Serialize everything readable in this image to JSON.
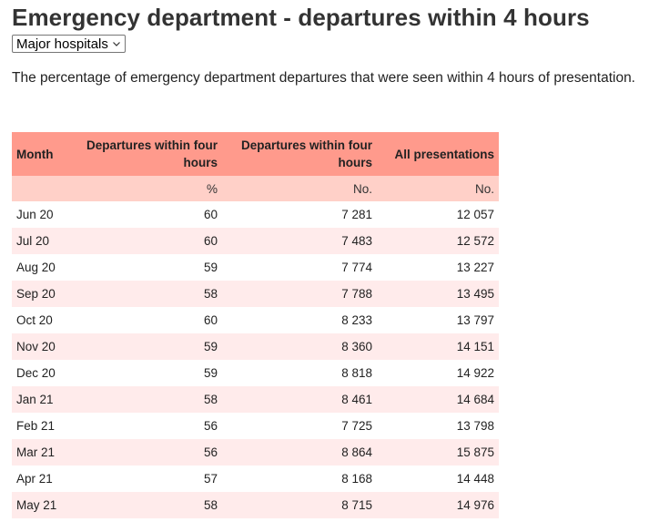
{
  "page": {
    "title": "Emergency department - departures within 4 hours",
    "description": "The percentage of emergency department departures that were seen within 4 hours of presentation."
  },
  "filter": {
    "selected": "Major hospitals",
    "icon": "chevron-down-icon"
  },
  "table": {
    "headers": [
      "Month",
      "Departures within four hours",
      "Departures within four hours",
      "All presentations"
    ],
    "units": [
      "",
      "%",
      "No.",
      "No."
    ],
    "rows": [
      [
        "Jun 20",
        "60",
        "7 281",
        "12 057"
      ],
      [
        "Jul 20",
        "60",
        "7 483",
        "12 572"
      ],
      [
        "Aug 20",
        "59",
        "7 774",
        "13 227"
      ],
      [
        "Sep 20",
        "58",
        "7 788",
        "13 495"
      ],
      [
        "Oct 20",
        "60",
        "8 233",
        "13 797"
      ],
      [
        "Nov 20",
        "59",
        "8 360",
        "14 151"
      ],
      [
        "Dec 20",
        "59",
        "8 818",
        "14 922"
      ],
      [
        "Jan 21",
        "58",
        "8 461",
        "14 684"
      ],
      [
        "Feb 21",
        "56",
        "7 725",
        "13 798"
      ],
      [
        "Mar 21",
        "56",
        "8 864",
        "15 875"
      ],
      [
        "Apr 21",
        "57",
        "8 168",
        "14 448"
      ],
      [
        "May 21",
        "58",
        "8 715",
        "14 976"
      ]
    ]
  },
  "colors": {
    "header_bg": "#ff9a8c",
    "units_bg": "#ffd0c8",
    "row_alt_bg": "#ffebeb",
    "title_text": "#333333"
  }
}
